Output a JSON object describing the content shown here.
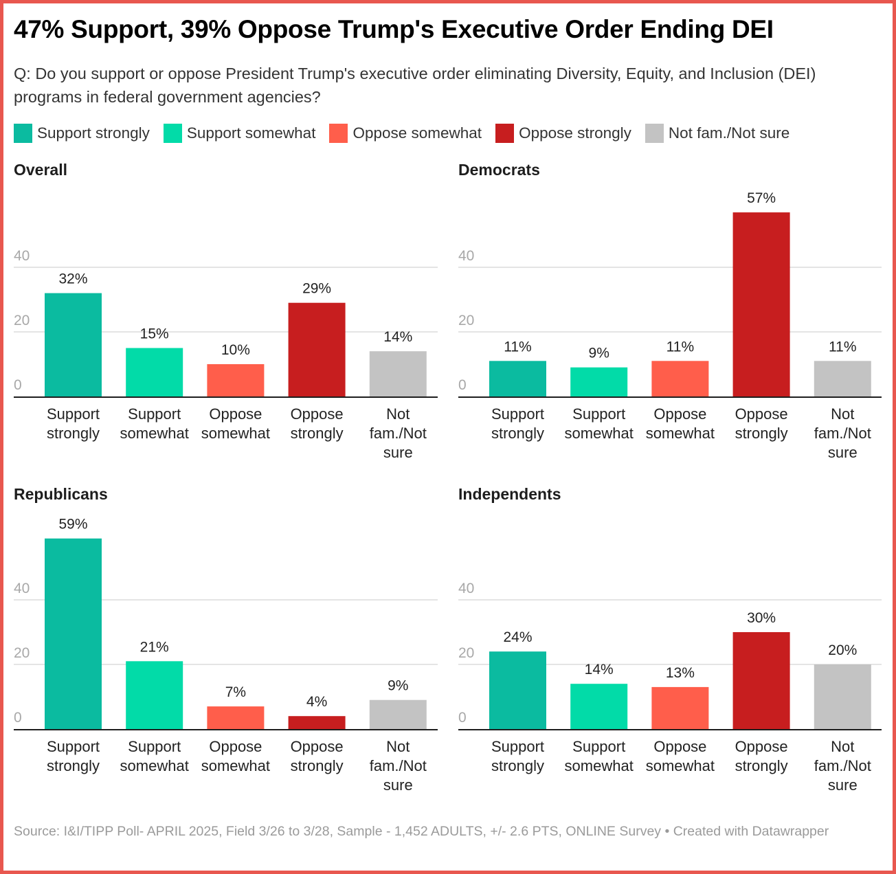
{
  "title": "47% Support, 39% Oppose Trump's Executive Order Ending DEI",
  "subtitle": "Q: Do you support or oppose President Trump's executive order eliminating Diversity, Equity, and Inclusion (DEI) programs in federal government agencies?",
  "legend": [
    {
      "label": "Support strongly",
      "color": "#0bbba0"
    },
    {
      "label": "Support somewhat",
      "color": "#02dba8"
    },
    {
      "label": "Oppose somewhat",
      "color": "#ff5e4b"
    },
    {
      "label": "Oppose strongly",
      "color": "#c71e1f"
    },
    {
      "label": "Not fam./Not sure",
      "color": "#c3c3c3"
    }
  ],
  "footer": "Source: I&I/TIPP Poll- APRIL 2025, Field 3/26 to 3/28, Sample - 1,452 ADULTS, +/- 2.6 PTS, ONLINE Survey • Created with Datawrapper",
  "chart_data": [
    {
      "type": "bar",
      "title": "Overall",
      "categories": [
        "Support strongly",
        "Support somewhat",
        "Oppose somewhat",
        "Oppose strongly",
        "Not fam./Not sure"
      ],
      "category_lines": [
        [
          "Support",
          "strongly"
        ],
        [
          "Support",
          "somewhat"
        ],
        [
          "Oppose",
          "somewhat"
        ],
        [
          "Oppose",
          "strongly"
        ],
        [
          "Not",
          "fam./Not",
          "sure"
        ]
      ],
      "values": [
        32,
        15,
        10,
        29,
        14
      ],
      "value_labels": [
        "32%",
        "15%",
        "10%",
        "29%",
        "14%"
      ],
      "colors": [
        "#0bbba0",
        "#02dba8",
        "#ff5e4b",
        "#c71e1f",
        "#c3c3c3"
      ],
      "yticks": [
        0,
        20,
        40
      ],
      "ylabel": "",
      "xlabel": "",
      "grid": true
    },
    {
      "type": "bar",
      "title": "Democrats",
      "categories": [
        "Support strongly",
        "Support somewhat",
        "Oppose somewhat",
        "Oppose strongly",
        "Not fam./Not sure"
      ],
      "category_lines": [
        [
          "Support",
          "strongly"
        ],
        [
          "Support",
          "somewhat"
        ],
        [
          "Oppose",
          "somewhat"
        ],
        [
          "Oppose",
          "strongly"
        ],
        [
          "Not",
          "fam./Not",
          "sure"
        ]
      ],
      "values": [
        11,
        9,
        11,
        57,
        11
      ],
      "value_labels": [
        "11%",
        "9%",
        "11%",
        "57%",
        "11%"
      ],
      "colors": [
        "#0bbba0",
        "#02dba8",
        "#ff5e4b",
        "#c71e1f",
        "#c3c3c3"
      ],
      "yticks": [
        0,
        20,
        40
      ],
      "ylabel": "",
      "xlabel": "",
      "grid": true
    },
    {
      "type": "bar",
      "title": "Republicans",
      "categories": [
        "Support strongly",
        "Support somewhat",
        "Oppose somewhat",
        "Oppose strongly",
        "Not fam./Not sure"
      ],
      "category_lines": [
        [
          "Support",
          "strongly"
        ],
        [
          "Support",
          "somewhat"
        ],
        [
          "Oppose",
          "somewhat"
        ],
        [
          "Oppose",
          "strongly"
        ],
        [
          "Not",
          "fam./Not",
          "sure"
        ]
      ],
      "values": [
        59,
        21,
        7,
        4,
        9
      ],
      "value_labels": [
        "59%",
        "21%",
        "7%",
        "4%",
        "9%"
      ],
      "colors": [
        "#0bbba0",
        "#02dba8",
        "#ff5e4b",
        "#c71e1f",
        "#c3c3c3"
      ],
      "yticks": [
        0,
        20,
        40
      ],
      "ylabel": "",
      "xlabel": "",
      "grid": true
    },
    {
      "type": "bar",
      "title": "Independents",
      "categories": [
        "Support strongly",
        "Support somewhat",
        "Oppose somewhat",
        "Oppose strongly",
        "Not fam./Not sure"
      ],
      "category_lines": [
        [
          "Support",
          "strongly"
        ],
        [
          "Support",
          "somewhat"
        ],
        [
          "Oppose",
          "somewhat"
        ],
        [
          "Oppose",
          "strongly"
        ],
        [
          "Not",
          "fam./Not",
          "sure"
        ]
      ],
      "values": [
        24,
        14,
        13,
        30,
        20
      ],
      "value_labels": [
        "24%",
        "14%",
        "13%",
        "30%",
        "20%"
      ],
      "colors": [
        "#0bbba0",
        "#02dba8",
        "#ff5e4b",
        "#c71e1f",
        "#c3c3c3"
      ],
      "yticks": [
        0,
        20,
        40
      ],
      "ylabel": "",
      "xlabel": "",
      "grid": true
    }
  ]
}
